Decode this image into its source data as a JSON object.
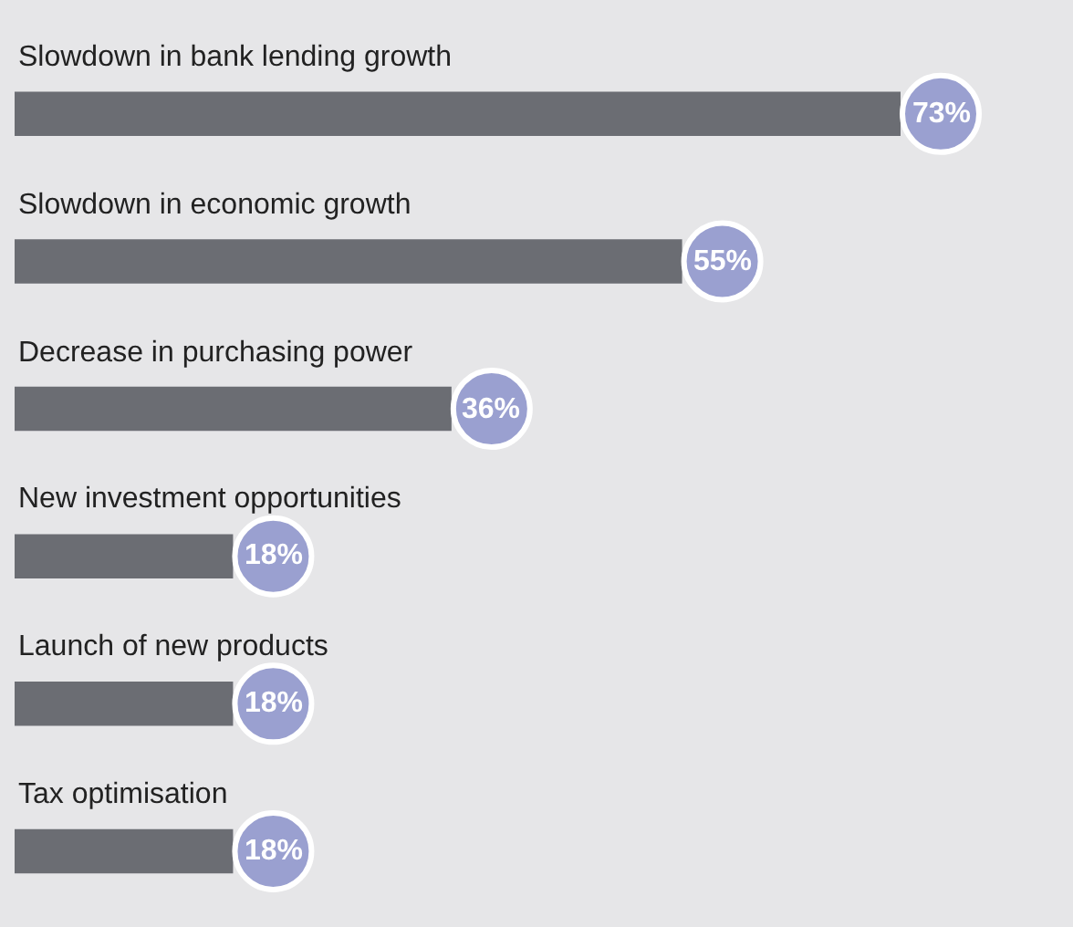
{
  "chart_data": {
    "type": "bar",
    "orientation": "horizontal",
    "categories": [
      "Slowdown in bank lending growth",
      "Slowdown in economic growth",
      "Decrease in purchasing power",
      "New investment opportunities",
      "Launch of new products",
      "Tax optimisation"
    ],
    "values": [
      73,
      55,
      36,
      18,
      18,
      18
    ],
    "value_labels": [
      "73%",
      "55%",
      "36%",
      "18%",
      "18%",
      "18%"
    ],
    "color": "#6b6d73"
  }
}
